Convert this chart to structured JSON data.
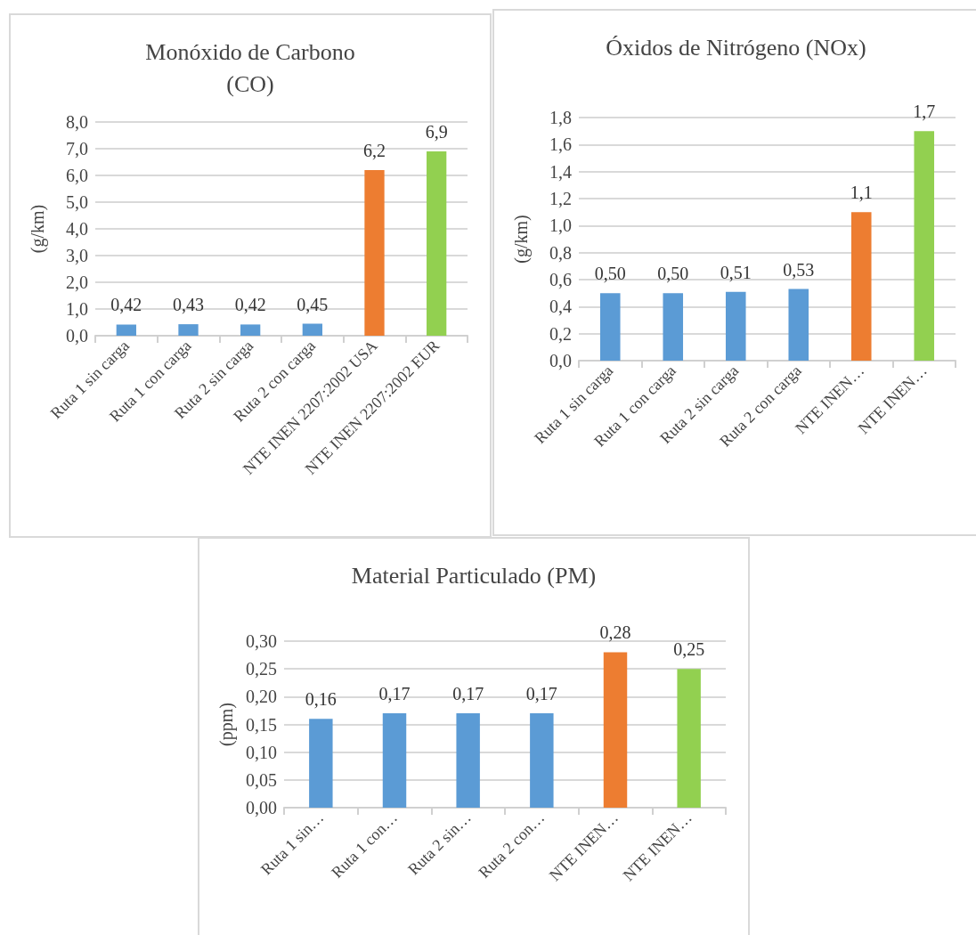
{
  "chart_data": [
    {
      "type": "bar",
      "title": "Monóxido de Carbono\n(CO)",
      "ylabel": "(g/km)",
      "categories": [
        "Ruta 1 sin carga",
        "Ruta 1 con carga",
        "Ruta 2 sin carga",
        "Ruta 2 con carga",
        "NTE INEN 2207:2002 USA",
        "NTE INEN 2207:2002 EUR"
      ],
      "values": [
        0.42,
        0.43,
        0.42,
        0.45,
        6.2,
        6.9
      ],
      "value_labels": [
        "0,42",
        "0,43",
        "0,42",
        "0,45",
        "6,2",
        "6,9"
      ],
      "colors": [
        "#5b9bd5",
        "#5b9bd5",
        "#5b9bd5",
        "#5b9bd5",
        "#ed7d31",
        "#92d050"
      ],
      "ylim": [
        0,
        8
      ],
      "yticks": [
        {
          "value": 0,
          "label": "0,0"
        },
        {
          "value": 1,
          "label": "1,0"
        },
        {
          "value": 2,
          "label": "2,0"
        },
        {
          "value": 3,
          "label": "3,0"
        },
        {
          "value": 4,
          "label": "4,0"
        },
        {
          "value": 5,
          "label": "5,0"
        },
        {
          "value": 6,
          "label": "6,0"
        },
        {
          "value": 7,
          "label": "7,0"
        },
        {
          "value": 8,
          "label": "8,0"
        }
      ],
      "grid": "y"
    },
    {
      "type": "bar",
      "title": "Óxidos de Nitrógeno (NOx)",
      "ylabel": "(g/km)",
      "categories": [
        "Ruta 1 sin carga",
        "Ruta 1 con carga",
        "Ruta 2 sin carga",
        "Ruta 2 con carga",
        "NTE INEN…",
        "NTE INEN…"
      ],
      "values": [
        0.5,
        0.5,
        0.51,
        0.53,
        1.1,
        1.7
      ],
      "value_labels": [
        "0,50",
        "0,50",
        "0,51",
        "0,53",
        "1,1",
        "1,7"
      ],
      "colors": [
        "#5b9bd5",
        "#5b9bd5",
        "#5b9bd5",
        "#5b9bd5",
        "#ed7d31",
        "#92d050"
      ],
      "ylim": [
        0,
        1.8
      ],
      "yticks": [
        {
          "value": 0,
          "label": "0,0"
        },
        {
          "value": 0.2,
          "label": "0,2"
        },
        {
          "value": 0.4,
          "label": "0,4"
        },
        {
          "value": 0.6,
          "label": "0,6"
        },
        {
          "value": 0.8,
          "label": "0,8"
        },
        {
          "value": 1,
          "label": "1,0"
        },
        {
          "value": 1.2,
          "label": "1,2"
        },
        {
          "value": 1.4,
          "label": "1,4"
        },
        {
          "value": 1.6,
          "label": "1,6"
        },
        {
          "value": 1.8,
          "label": "1,8"
        }
      ],
      "grid": "y"
    },
    {
      "type": "bar",
      "title": "Material Particulado (PM)",
      "ylabel": "(ppm)",
      "categories": [
        "Ruta 1 sin…",
        "Ruta 1 con…",
        "Ruta 2 sin…",
        "Ruta 2 con…",
        "NTE INEN…",
        "NTE INEN…"
      ],
      "values": [
        0.16,
        0.17,
        0.17,
        0.17,
        0.28,
        0.25
      ],
      "value_labels": [
        "0,16",
        "0,17",
        "0,17",
        "0,17",
        "0,28",
        "0,25"
      ],
      "colors": [
        "#5b9bd5",
        "#5b9bd5",
        "#5b9bd5",
        "#5b9bd5",
        "#ed7d31",
        "#92d050"
      ],
      "ylim": [
        0,
        0.3
      ],
      "yticks": [
        {
          "value": 0,
          "label": "0,00"
        },
        {
          "value": 0.05,
          "label": "0,05"
        },
        {
          "value": 0.1,
          "label": "0,10"
        },
        {
          "value": 0.15,
          "label": "0,15"
        },
        {
          "value": 0.2,
          "label": "0,20"
        },
        {
          "value": 0.25,
          "label": "0,25"
        },
        {
          "value": 0.3,
          "label": "0,30"
        }
      ],
      "grid": "y"
    }
  ]
}
